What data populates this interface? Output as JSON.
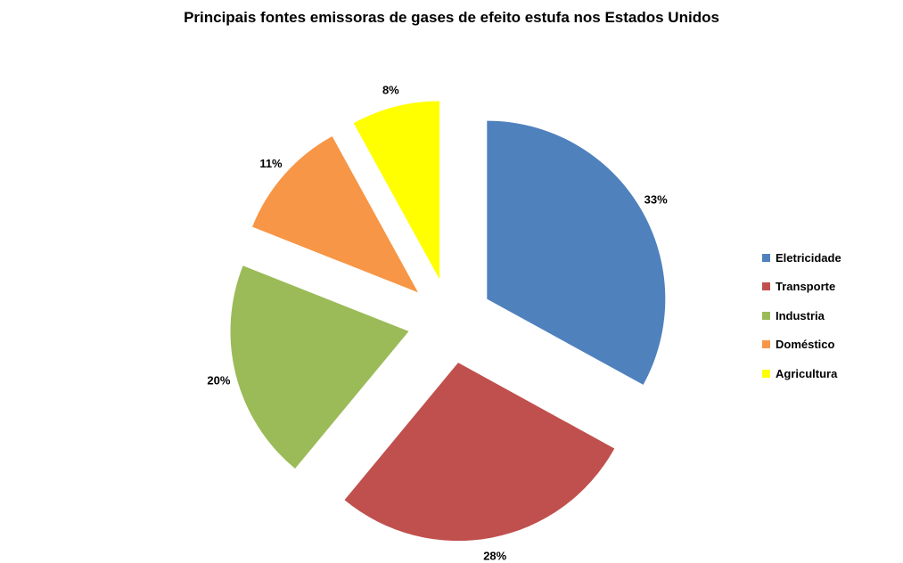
{
  "chart_data": {
    "type": "pie",
    "title": "Principais fontes emissoras de gases de efeito estufa nos Estados Unidos",
    "exploded": true,
    "legend_position": "right",
    "slices": [
      {
        "label": "Eletricidade",
        "value": 33,
        "display": "33%",
        "color": "#4F81BD"
      },
      {
        "label": "Transporte",
        "value": 28,
        "display": "28%",
        "color": "#C0504D"
      },
      {
        "label": "Industria",
        "value": 20,
        "display": "20%",
        "color": "#9BBB59"
      },
      {
        "label": "Doméstico",
        "value": 11,
        "display": "11%",
        "color": "#F79646"
      },
      {
        "label": "Agricultura",
        "value": 8,
        "display": "8%",
        "color": "#FFFF00"
      }
    ]
  }
}
